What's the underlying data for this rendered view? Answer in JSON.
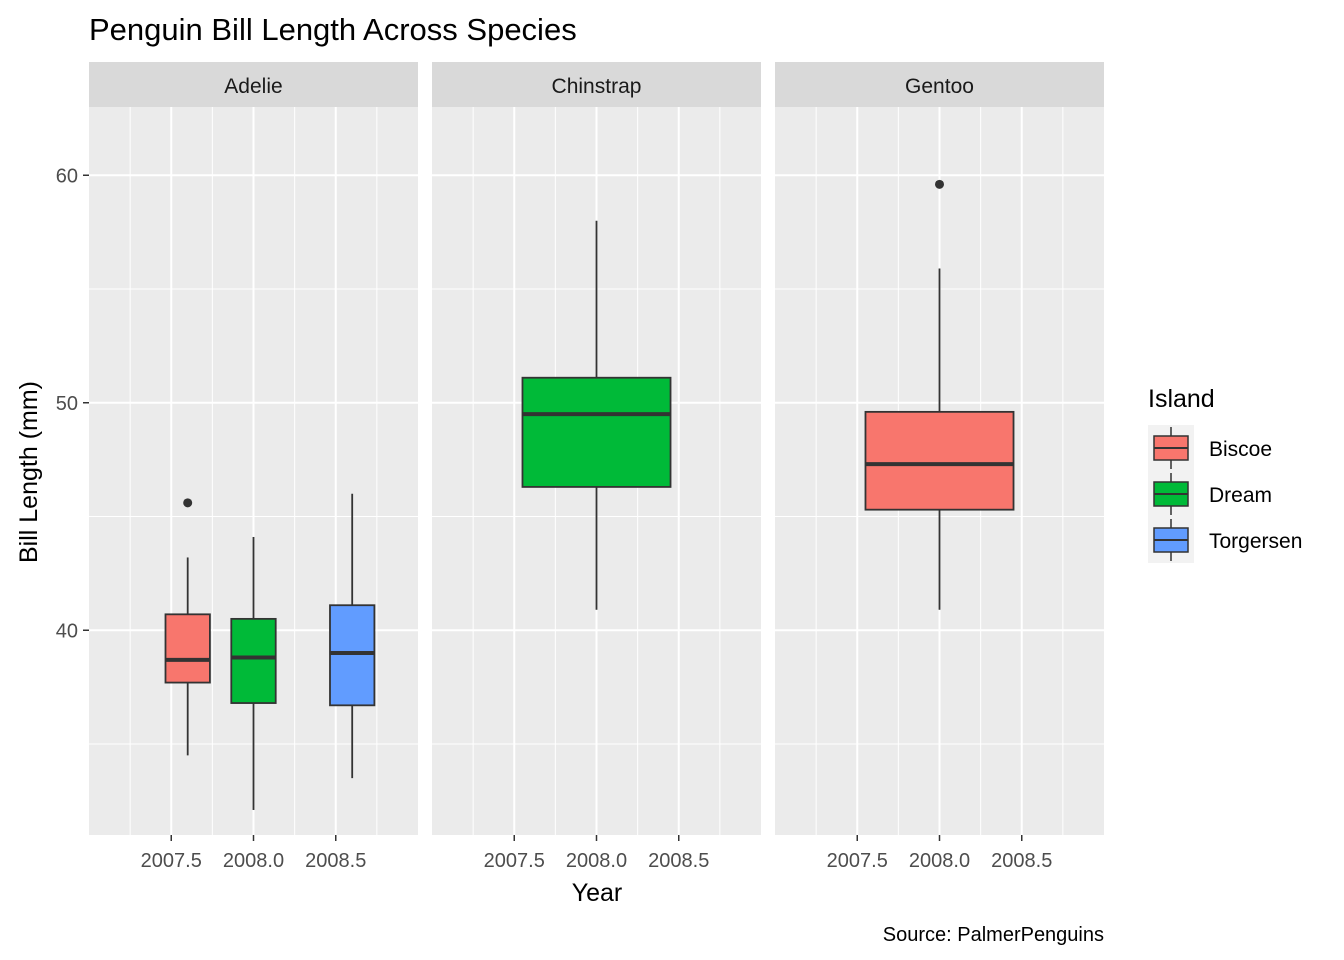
{
  "chart_data": {
    "type": "boxplot",
    "title": "Penguin Bill Length Across Species",
    "xlabel": "Year",
    "ylabel": "Bill Length (mm)",
    "caption": "Source: PalmerPenguins",
    "xlim": [
      2007,
      2009
    ],
    "xticks": [
      2007.5,
      2008.0,
      2008.5
    ],
    "xtick_labels": [
      "2007.5",
      "2008.0",
      "2008.5"
    ],
    "ylim": [
      31,
      63
    ],
    "yticks": [
      40,
      50,
      60
    ],
    "ytick_labels": [
      "40",
      "50",
      "60"
    ],
    "grid": true,
    "legend": {
      "title": "Island",
      "position": "right",
      "entries": [
        {
          "label": "Biscoe",
          "color": "#F8766D"
        },
        {
          "label": "Dream",
          "color": "#00BA38"
        },
        {
          "label": "Torgersen",
          "color": "#619CFF"
        }
      ]
    },
    "facets": [
      {
        "label": "Adelie",
        "boxes": [
          {
            "island": "Biscoe",
            "x_center": 2007.6,
            "width": 0.27,
            "whisker_low": 34.5,
            "q1": 37.7,
            "median": 38.7,
            "q3": 40.7,
            "whisker_high": 43.2,
            "outliers": [
              45.6
            ]
          },
          {
            "island": "Dream",
            "x_center": 2008.0,
            "width": 0.27,
            "whisker_low": 32.1,
            "q1": 36.8,
            "median": 38.8,
            "q3": 40.5,
            "whisker_high": 44.1,
            "outliers": []
          },
          {
            "island": "Torgersen",
            "x_center": 2008.6,
            "width": 0.27,
            "whisker_low": 33.5,
            "q1": 36.7,
            "median": 39.0,
            "q3": 41.1,
            "whisker_high": 46.0,
            "outliers": []
          }
        ]
      },
      {
        "label": "Chinstrap",
        "boxes": [
          {
            "island": "Dream",
            "x_center": 2008.0,
            "width": 0.9,
            "whisker_low": 40.9,
            "q1": 46.3,
            "median": 49.5,
            "q3": 51.1,
            "whisker_high": 58.0,
            "outliers": []
          }
        ]
      },
      {
        "label": "Gentoo",
        "boxes": [
          {
            "island": "Biscoe",
            "x_center": 2008.0,
            "width": 0.9,
            "whisker_low": 40.9,
            "q1": 45.3,
            "median": 47.3,
            "q3": 49.6,
            "whisker_high": 55.9,
            "outliers": [
              59.6
            ]
          }
        ]
      }
    ]
  }
}
